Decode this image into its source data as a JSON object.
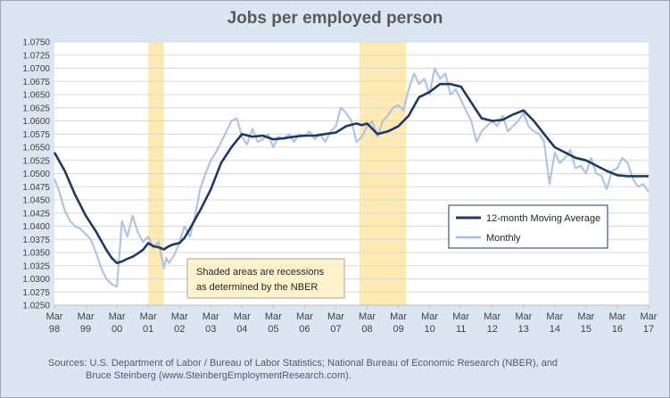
{
  "chart_data": {
    "type": "line",
    "title": "Jobs per employed person",
    "xlabel": "",
    "ylabel": "",
    "ylim": [
      1.025,
      1.075
    ],
    "xlim": [
      1998.17,
      2017.17
    ],
    "grid": true,
    "legend_position": "bottom-right",
    "y_ticks": [
      "1.0750",
      "1.0725",
      "1.0700",
      "1.0675",
      "1.0650",
      "1.0625",
      "1.0600",
      "1.0575",
      "1.0550",
      "1.0525",
      "1.0500",
      "1.0475",
      "1.0450",
      "1.0425",
      "1.0400",
      "1.0375",
      "1.0350",
      "1.0325",
      "1.0300",
      "1.0275",
      "1.0250"
    ],
    "x_ticks": [
      {
        "month": "Mar",
        "year": "98"
      },
      {
        "month": "Mar",
        "year": "99"
      },
      {
        "month": "Mar",
        "year": "00"
      },
      {
        "month": "Mar",
        "year": "01"
      },
      {
        "month": "Mar",
        "year": "02"
      },
      {
        "month": "Mar",
        "year": "03"
      },
      {
        "month": "Mar",
        "year": "04"
      },
      {
        "month": "Mar",
        "year": "05"
      },
      {
        "month": "Mar",
        "year": "06"
      },
      {
        "month": "Mar",
        "year": "07"
      },
      {
        "month": "Mar",
        "year": "08"
      },
      {
        "month": "Mar",
        "year": "09"
      },
      {
        "month": "Mar",
        "year": "10"
      },
      {
        "month": "Mar",
        "year": "11"
      },
      {
        "month": "Mar",
        "year": "12"
      },
      {
        "month": "Mar",
        "year": "13"
      },
      {
        "month": "Mar",
        "year": "14"
      },
      {
        "month": "Mar",
        "year": "15"
      },
      {
        "month": "Mar",
        "year": "16"
      },
      {
        "month": "Mar",
        "year": "17"
      }
    ],
    "recessions": [
      {
        "start": 2001.17,
        "end": 2001.67
      },
      {
        "start": 2007.92,
        "end": 2009.42
      }
    ],
    "annotation": {
      "line1": "Shaded areas are recessions",
      "line2": "as determined by the NBER"
    },
    "series": [
      {
        "name": "12-month Moving Average",
        "color": "#1f3864",
        "x": [
          1998.17,
          1998.5,
          1998.83,
          1999.17,
          1999.5,
          1999.83,
          2000.0,
          2000.17,
          2000.33,
          2000.5,
          2000.67,
          2000.83,
          2001.0,
          2001.17,
          2001.33,
          2001.5,
          2001.67,
          2001.83,
          2002.0,
          2002.17,
          2002.33,
          2002.5,
          2002.83,
          2003.17,
          2003.5,
          2003.83,
          2004.17,
          2004.5,
          2004.83,
          2005.17,
          2005.5,
          2005.83,
          2006.17,
          2006.5,
          2006.83,
          2007.17,
          2007.5,
          2007.83,
          2008.0,
          2008.17,
          2008.5,
          2008.83,
          2009.17,
          2009.5,
          2009.83,
          2010.17,
          2010.5,
          2010.83,
          2011.17,
          2011.5,
          2011.83,
          2012.17,
          2012.5,
          2012.83,
          2013.17,
          2013.5,
          2013.83,
          2014.17,
          2014.5,
          2014.83,
          2015.17,
          2015.5,
          2015.83,
          2016.17,
          2016.5,
          2016.83,
          2017.17
        ],
        "y": [
          1.054,
          1.0505,
          1.046,
          1.042,
          1.039,
          1.0355,
          1.034,
          1.033,
          1.0333,
          1.0338,
          1.0342,
          1.0348,
          1.0355,
          1.0368,
          1.0362,
          1.036,
          1.0356,
          1.0362,
          1.0366,
          1.0368,
          1.0378,
          1.0395,
          1.043,
          1.047,
          1.052,
          1.055,
          1.0575,
          1.057,
          1.0572,
          1.0565,
          1.0567,
          1.057,
          1.0572,
          1.0572,
          1.0575,
          1.0578,
          1.059,
          1.0595,
          1.0592,
          1.0595,
          1.0575,
          1.058,
          1.059,
          1.061,
          1.0645,
          1.0655,
          1.067,
          1.067,
          1.0665,
          1.0635,
          1.0605,
          1.06,
          1.0602,
          1.0612,
          1.062,
          1.06,
          1.0575,
          1.055,
          1.054,
          1.053,
          1.0525,
          1.0515,
          1.0505,
          1.0497,
          1.0495,
          1.0495,
          1.0495
        ]
      },
      {
        "name": "Monthly",
        "color": "#a7bfde",
        "x": [
          1998.17,
          1998.33,
          1998.5,
          1998.67,
          1998.83,
          1999.0,
          1999.17,
          1999.33,
          1999.5,
          1999.67,
          1999.83,
          2000.0,
          2000.17,
          2000.33,
          2000.5,
          2000.67,
          2000.83,
          2001.0,
          2001.17,
          2001.33,
          2001.5,
          2001.67,
          2001.75,
          2001.83,
          2002.0,
          2002.17,
          2002.33,
          2002.5,
          2002.67,
          2002.83,
          2003.0,
          2003.17,
          2003.33,
          2003.5,
          2003.67,
          2003.83,
          2004.0,
          2004.17,
          2004.33,
          2004.5,
          2004.67,
          2004.83,
          2005.0,
          2005.17,
          2005.33,
          2005.5,
          2005.67,
          2005.83,
          2006.0,
          2006.17,
          2006.33,
          2006.5,
          2006.67,
          2006.83,
          2007.0,
          2007.17,
          2007.33,
          2007.5,
          2007.67,
          2007.83,
          2008.0,
          2008.17,
          2008.33,
          2008.5,
          2008.67,
          2008.83,
          2009.0,
          2009.17,
          2009.33,
          2009.5,
          2009.67,
          2009.83,
          2010.0,
          2010.17,
          2010.33,
          2010.5,
          2010.67,
          2010.83,
          2011.0,
          2011.17,
          2011.33,
          2011.5,
          2011.67,
          2011.83,
          2012.0,
          2012.17,
          2012.33,
          2012.5,
          2012.67,
          2012.83,
          2013.0,
          2013.17,
          2013.33,
          2013.5,
          2013.67,
          2013.83,
          2014.0,
          2014.17,
          2014.33,
          2014.5,
          2014.67,
          2014.83,
          2015.0,
          2015.17,
          2015.33,
          2015.5,
          2015.67,
          2015.83,
          2016.0,
          2016.17,
          2016.33,
          2016.5,
          2016.67,
          2016.83,
          2017.0,
          2017.17
        ],
        "y": [
          1.049,
          1.0465,
          1.043,
          1.041,
          1.04,
          1.0395,
          1.0385,
          1.0375,
          1.035,
          1.032,
          1.03,
          1.029,
          1.0285,
          1.041,
          1.038,
          1.042,
          1.039,
          1.037,
          1.038,
          1.036,
          1.037,
          1.032,
          1.034,
          1.033,
          1.0345,
          1.037,
          1.04,
          1.038,
          1.042,
          1.047,
          1.05,
          1.0525,
          1.054,
          1.056,
          1.058,
          1.06,
          1.0605,
          1.057,
          1.0555,
          1.0585,
          1.056,
          1.0565,
          1.0575,
          1.055,
          1.057,
          1.0565,
          1.0575,
          1.056,
          1.0575,
          1.057,
          1.058,
          1.0565,
          1.0575,
          1.056,
          1.058,
          1.059,
          1.0625,
          1.0615,
          1.06,
          1.056,
          1.057,
          1.059,
          1.06,
          1.057,
          1.06,
          1.061,
          1.0625,
          1.063,
          1.062,
          1.066,
          1.069,
          1.067,
          1.068,
          1.065,
          1.07,
          1.068,
          1.069,
          1.065,
          1.066,
          1.064,
          1.062,
          1.06,
          1.056,
          1.058,
          1.059,
          1.06,
          1.059,
          1.061,
          1.058,
          1.059,
          1.06,
          1.0615,
          1.059,
          1.058,
          1.0575,
          1.056,
          1.048,
          1.054,
          1.052,
          1.053,
          1.0545,
          1.051,
          1.0515,
          1.05,
          1.053,
          1.05,
          1.0495,
          1.047,
          1.0505,
          1.051,
          1.053,
          1.052,
          1.049,
          1.0475,
          1.048,
          1.0465
        ]
      }
    ]
  },
  "footer": {
    "sources_line1": "Sources: U.S. Department of Labor / Bureau of Labor Statistics; National Bureau of Economic Research (NBER), and",
    "sources_line2": "Bruce Steinberg (www.SteinbergEmploymentResearch.com)."
  }
}
